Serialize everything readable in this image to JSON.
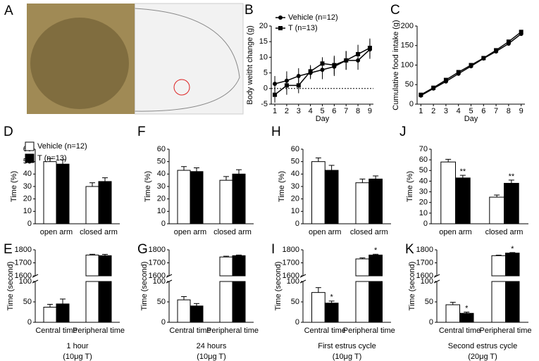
{
  "chart_data": [
    {
      "type": "image",
      "panel_label": "A"
    },
    {
      "type": "line",
      "panel_label": "B",
      "ylabel": "Body weitht change (g)",
      "xlabel": "Day",
      "x": [
        1,
        2,
        3,
        4,
        5,
        6,
        7,
        8,
        9
      ],
      "xlim": [
        0.7,
        9.3
      ],
      "xticks": [
        1,
        2,
        3,
        4,
        5,
        6,
        7,
        8,
        9
      ],
      "ylim": [
        -5,
        20
      ],
      "yticks": [
        -5,
        0,
        5,
        10,
        15,
        20
      ],
      "hline": 0,
      "legend": "top-left",
      "series": [
        {
          "name": "Vehicle (n=12)",
          "color": "#000000",
          "marker": "circle",
          "values": [
            1.5,
            2.5,
            4,
            5,
            6,
            7,
            9,
            9,
            12.5
          ],
          "errors": [
            2.5,
            3,
            2.5,
            2,
            3,
            3,
            3,
            3,
            3
          ]
        },
        {
          "name": "T (n=13)",
          "color": "#000000",
          "marker": "square",
          "values": [
            -2,
            1,
            1,
            5.5,
            8,
            7.5,
            9,
            11,
            13
          ],
          "errors": [
            2.5,
            3,
            2.5,
            2,
            2,
            3,
            3,
            3,
            3
          ]
        }
      ]
    },
    {
      "type": "line",
      "panel_label": "C",
      "ylabel": "Cumulative food intake (g)",
      "xlabel": "Day",
      "x": [
        1,
        2,
        3,
        4,
        5,
        6,
        7,
        8,
        9
      ],
      "xlim": [
        0.7,
        9.3
      ],
      "xticks": [
        1,
        2,
        3,
        4,
        5,
        6,
        7,
        8,
        9
      ],
      "ylim": [
        0,
        200
      ],
      "yticks": [
        0,
        50,
        100,
        150,
        200
      ],
      "series": [
        {
          "name": "Vehicle (n=12)",
          "color": "#000000",
          "marker": "circle",
          "values": [
            22,
            40,
            58,
            78,
            97,
            117,
            135,
            155,
            180
          ],
          "errors": [
            2,
            3,
            3,
            4,
            4,
            4,
            5,
            5,
            5
          ]
        },
        {
          "name": "T (n=13)",
          "color": "#000000",
          "marker": "square",
          "values": [
            24,
            42,
            62,
            82,
            100,
            118,
            138,
            160,
            185
          ],
          "errors": [
            2,
            3,
            3,
            4,
            4,
            4,
            5,
            5,
            5
          ]
        }
      ]
    },
    {
      "type": "bar",
      "panel_label": "D",
      "ylabel": "Time (%)",
      "categories": [
        "open arm",
        "closed arm"
      ],
      "ylim": [
        0,
        60
      ],
      "yticks": [
        0,
        10,
        20,
        30,
        40,
        50,
        60
      ],
      "legend": "top-left",
      "series": [
        {
          "name": "Vehicle (n=12)",
          "color": "#ffffff",
          "values": [
            50,
            30
          ],
          "errors": [
            2.5,
            3
          ]
        },
        {
          "name": "T (n=13)",
          "color": "#000000",
          "values": [
            48,
            34
          ],
          "errors": [
            3.5,
            3
          ]
        }
      ]
    },
    {
      "type": "bar",
      "panel_label": "F",
      "ylabel": "Time (%)",
      "categories": [
        "open arm",
        "closed arm"
      ],
      "ylim": [
        0,
        60
      ],
      "yticks": [
        0,
        10,
        20,
        30,
        40,
        50,
        60
      ],
      "series": [
        {
          "name": "Vehicle (n=12)",
          "color": "#ffffff",
          "values": [
            43,
            35
          ],
          "errors": [
            3,
            3
          ]
        },
        {
          "name": "T (n=13)",
          "color": "#000000",
          "values": [
            42,
            40
          ],
          "errors": [
            3,
            3.5
          ]
        }
      ]
    },
    {
      "type": "bar",
      "panel_label": "H",
      "ylabel": "Time (%)",
      "categories": [
        "open arm",
        "closed arm"
      ],
      "ylim": [
        0,
        60
      ],
      "yticks": [
        0,
        10,
        20,
        30,
        40,
        50,
        60
      ],
      "series": [
        {
          "name": "Vehicle (n=12)",
          "color": "#ffffff",
          "values": [
            50,
            33
          ],
          "errors": [
            3,
            3
          ]
        },
        {
          "name": "T (n=13)",
          "color": "#000000",
          "values": [
            43,
            36
          ],
          "errors": [
            4,
            2.5
          ]
        }
      ]
    },
    {
      "type": "bar",
      "panel_label": "J",
      "ylabel": "Time (%)",
      "categories": [
        "open arm",
        "closed arm"
      ],
      "ylim": [
        0,
        70
      ],
      "yticks": [
        0,
        10,
        20,
        30,
        40,
        50,
        60,
        70
      ],
      "series": [
        {
          "name": "Vehicle (n=12)",
          "color": "#ffffff",
          "values": [
            58,
            25
          ],
          "errors": [
            2.5,
            2
          ]
        },
        {
          "name": "T (n=13)",
          "color": "#000000",
          "values": [
            43,
            38
          ],
          "errors": [
            2.5,
            3
          ],
          "significance": [
            "**",
            "**"
          ]
        }
      ]
    },
    {
      "type": "broken_bar",
      "panel_label": "E",
      "ylabel": "Time (second)",
      "categories": [
        "Central time",
        "Peripheral time"
      ],
      "caption": [
        "1 hour",
        "(10μg T)"
      ],
      "ylim_lower": [
        0,
        100
      ],
      "yticks_lower": [
        0,
        50,
        100
      ],
      "ylim_upper": [
        1600,
        1800
      ],
      "yticks_upper": [
        1600,
        1700,
        1800
      ],
      "series": [
        {
          "name": "Vehicle (n=12)",
          "color": "#ffffff",
          "values": [
            37,
            1760
          ],
          "errors": [
            7,
            6
          ]
        },
        {
          "name": "T (n=13)",
          "color": "#000000",
          "values": [
            45,
            1755
          ],
          "errors": [
            12,
            10
          ]
        }
      ]
    },
    {
      "type": "broken_bar",
      "panel_label": "G",
      "ylabel": "Time (second)",
      "categories": [
        "Central time",
        "Peripheral time"
      ],
      "caption": [
        "24 hours",
        "(10μg T)"
      ],
      "ylim_lower": [
        0,
        100
      ],
      "yticks_lower": [
        0,
        50,
        100
      ],
      "ylim_upper": [
        1600,
        1800
      ],
      "yticks_upper": [
        1600,
        1700,
        1800
      ],
      "series": [
        {
          "name": "Vehicle (n=12)",
          "color": "#ffffff",
          "values": [
            55,
            1745
          ],
          "errors": [
            8,
            6
          ]
        },
        {
          "name": "T (n=13)",
          "color": "#000000",
          "values": [
            40,
            1755
          ],
          "errors": [
            6,
            5
          ]
        }
      ]
    },
    {
      "type": "broken_bar",
      "panel_label": "I",
      "ylabel": "Time (second)",
      "categories": [
        "Central time",
        "Peripheral time"
      ],
      "caption": [
        "First estrus cycle",
        "(10μg T)"
      ],
      "ylim_lower": [
        0,
        100
      ],
      "yticks_lower": [
        0,
        50,
        100
      ],
      "ylim_upper": [
        1600,
        1800
      ],
      "yticks_upper": [
        1600,
        1700,
        1800
      ],
      "series": [
        {
          "name": "Vehicle (n=12)",
          "color": "#ffffff",
          "values": [
            73,
            1730
          ],
          "errors": [
            12,
            8
          ]
        },
        {
          "name": "T (n=13)",
          "color": "#000000",
          "values": [
            47,
            1760
          ],
          "errors": [
            5,
            6
          ],
          "significance": [
            "*",
            "*"
          ]
        }
      ]
    },
    {
      "type": "broken_bar",
      "panel_label": "K",
      "ylabel": "Time (second)",
      "categories": [
        "Central time",
        "Peripheral time"
      ],
      "caption": [
        "Second estrus cycle",
        "(20μg T)"
      ],
      "ylim_lower": [
        0,
        100
      ],
      "yticks_lower": [
        0,
        50,
        100
      ],
      "ylim_upper": [
        1600,
        1800
      ],
      "yticks_upper": [
        1600,
        1700,
        1800
      ],
      "series": [
        {
          "name": "Vehicle (n=12)",
          "color": "#ffffff",
          "values": [
            43,
            1755
          ],
          "errors": [
            6,
            4
          ]
        },
        {
          "name": "T (n=13)",
          "color": "#000000",
          "values": [
            22,
            1775
          ],
          "errors": [
            3,
            4
          ],
          "significance": [
            "*",
            "*"
          ]
        }
      ]
    }
  ]
}
